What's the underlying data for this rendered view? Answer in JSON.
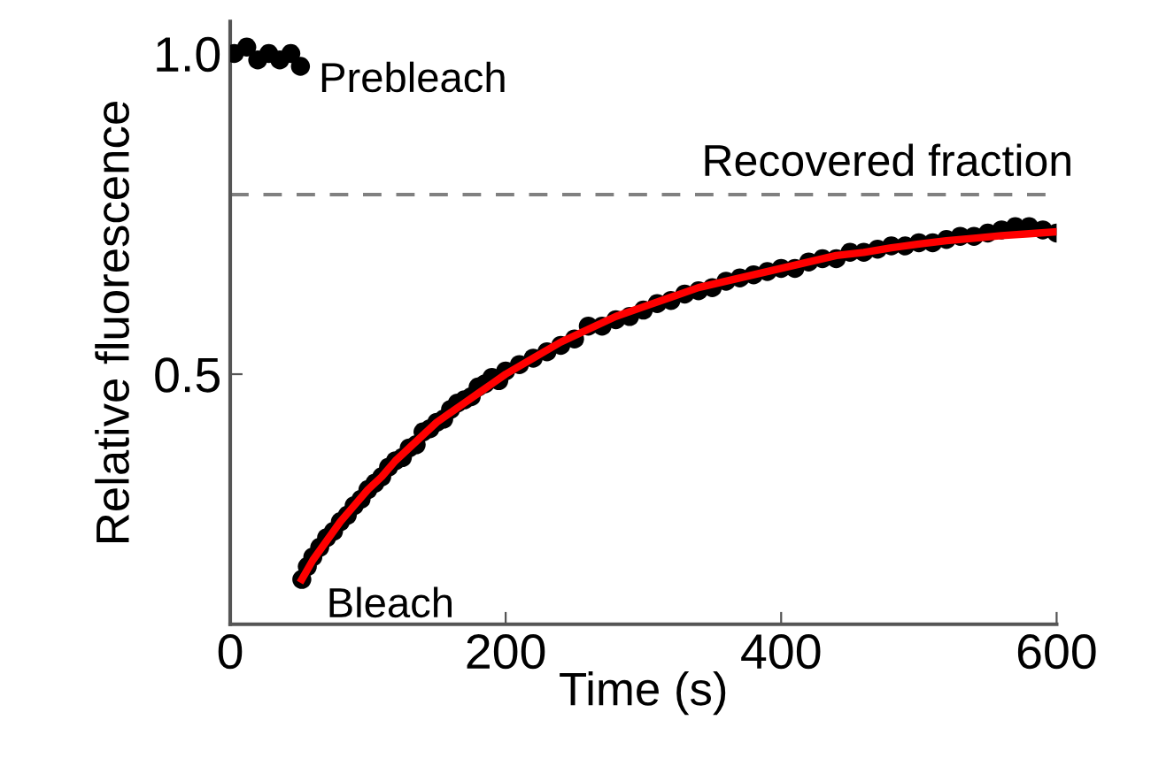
{
  "chart_data": {
    "type": "scatter",
    "xlabel": "Time (s)",
    "ylabel": "Relative fluorescence",
    "xlim": [
      0,
      600
    ],
    "xticks": [
      0,
      200,
      400,
      600
    ],
    "ylim": [
      0.11,
      1.05
    ],
    "yticks": [
      0.5,
      {
        "value": 1.0,
        "label": "1.0"
      }
    ],
    "grid": false,
    "legend": false,
    "marker": "circle",
    "series": [
      {
        "color": "#000000",
        "x": [
          3,
          12,
          20,
          28,
          36,
          44,
          51
        ],
        "values": [
          1.0,
          1.01,
          0.99,
          1.0,
          0.99,
          1.0,
          0.98
        ]
      },
      {
        "color": "#000000",
        "x": [
          52,
          56,
          60,
          65,
          70,
          75,
          80,
          85,
          90,
          95,
          100,
          105,
          110,
          115,
          120,
          125,
          130,
          135,
          140,
          145,
          150,
          155,
          160,
          165,
          170,
          175,
          180,
          185,
          190,
          195,
          200,
          210,
          220,
          230,
          240,
          250,
          260,
          270,
          280,
          290,
          300,
          310,
          320,
          330,
          340,
          350,
          360,
          370,
          380,
          390,
          400,
          410,
          420,
          430,
          440,
          450,
          460,
          470,
          480,
          490,
          500,
          510,
          520,
          530,
          540,
          550,
          560,
          570,
          580,
          590,
          600
        ],
        "values": [
          0.18,
          0.2,
          0.215,
          0.23,
          0.245,
          0.255,
          0.27,
          0.28,
          0.295,
          0.305,
          0.32,
          0.33,
          0.34,
          0.355,
          0.365,
          0.37,
          0.385,
          0.39,
          0.41,
          0.415,
          0.425,
          0.43,
          0.445,
          0.455,
          0.46,
          0.465,
          0.48,
          0.485,
          0.495,
          0.49,
          0.505,
          0.515,
          0.525,
          0.535,
          0.545,
          0.555,
          0.575,
          0.575,
          0.585,
          0.59,
          0.6,
          0.61,
          0.615,
          0.625,
          0.63,
          0.635,
          0.645,
          0.65,
          0.655,
          0.66,
          0.665,
          0.665,
          0.675,
          0.68,
          0.68,
          0.69,
          0.69,
          0.695,
          0.7,
          0.7,
          0.705,
          0.705,
          0.71,
          0.715,
          0.715,
          0.72,
          0.725,
          0.73,
          0.73,
          0.725,
          0.72
        ]
      },
      {
        "type": "line",
        "color": "#ff0000",
        "marker": "none",
        "x": [
          52,
          60,
          70,
          80,
          90,
          100,
          110,
          120,
          130,
          140,
          150,
          160,
          170,
          180,
          190,
          200,
          220,
          240,
          260,
          280,
          300,
          320,
          340,
          360,
          380,
          400,
          420,
          440,
          460,
          480,
          500,
          520,
          540,
          560,
          580,
          600
        ],
        "values": [
          0.18,
          0.21,
          0.24,
          0.27,
          0.295,
          0.32,
          0.34,
          0.365,
          0.385,
          0.405,
          0.425,
          0.44,
          0.455,
          0.47,
          0.485,
          0.5,
          0.525,
          0.55,
          0.57,
          0.59,
          0.605,
          0.62,
          0.635,
          0.645,
          0.655,
          0.665,
          0.675,
          0.685,
          0.69,
          0.697,
          0.703,
          0.708,
          0.712,
          0.716,
          0.719,
          0.722
        ]
      }
    ],
    "ref_lines": [
      {
        "axis": "y",
        "value": 0.78,
        "label": "Recovered fraction",
        "color": "#808080",
        "line_style": "dashed"
      }
    ],
    "annotations": [
      {
        "text": "Prebleach",
        "x": 50,
        "y": 0.98
      },
      {
        "text": "Bleach",
        "x": 52,
        "y": 0.18
      }
    ]
  }
}
